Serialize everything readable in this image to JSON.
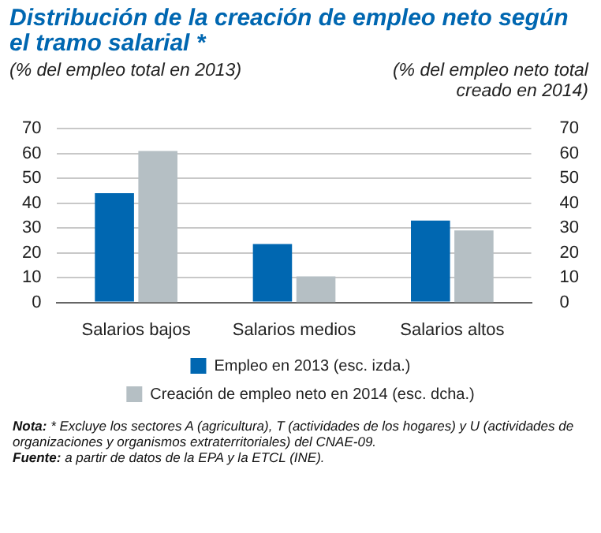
{
  "chart_data": {
    "type": "bar",
    "title": "Distribución de la creación de empleo neto según el tramo salarial *",
    "ylabel": "(% del empleo total en 2013)",
    "y2label": "(% del empleo neto total creado en 2014)",
    "categories": [
      "Salarios bajos",
      "Salarios medios",
      "Salarios altos"
    ],
    "series": [
      {
        "name": "Empleo en 2013 (esc. izda.)",
        "color": "#0067b1",
        "values": [
          44,
          23.5,
          33
        ]
      },
      {
        "name": "Creación de empleo neto en 2014 (esc. dcha.)",
        "color": "#b5bfc4",
        "values": [
          61,
          10.5,
          29
        ],
        "axis": "y2"
      }
    ],
    "ylim": [
      0,
      70
    ],
    "yticks": [
      0,
      10,
      20,
      30,
      40,
      50,
      60,
      70
    ],
    "y2lim": [
      0,
      70
    ],
    "y2ticks": [
      0,
      10,
      20,
      30,
      40,
      50,
      60,
      70
    ],
    "grid": "y",
    "legend": "bottom",
    "annotations": [
      "Nota: * Excluye los sectores A (agricultura), T (actividades de los hogares) y U (actividades de organizaciones y organismos extraterritoriales) del CNAE-09.",
      "Fuente: a partir de datos de la EPA y la ETCL (INE)."
    ]
  }
}
